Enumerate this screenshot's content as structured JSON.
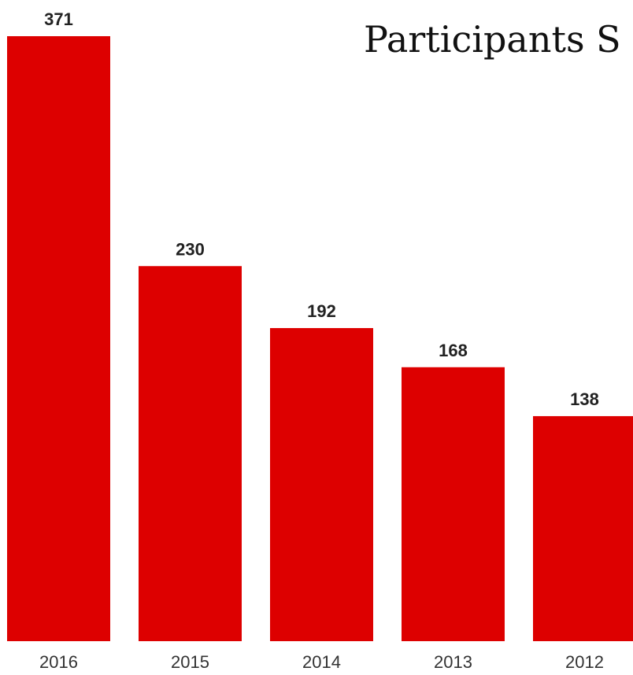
{
  "chart_data": {
    "type": "bar",
    "title": "Participants S",
    "categories": [
      "2016",
      "2015",
      "2014",
      "2013",
      "2012"
    ],
    "values": [
      371,
      230,
      192,
      168,
      138
    ],
    "data_labels": [
      "371",
      "230",
      "192",
      "168",
      "138"
    ],
    "xlabel": "",
    "ylabel": "",
    "ylim": [
      0,
      371
    ],
    "grid": false,
    "legend": "none",
    "bar_color": "#dd0000"
  }
}
